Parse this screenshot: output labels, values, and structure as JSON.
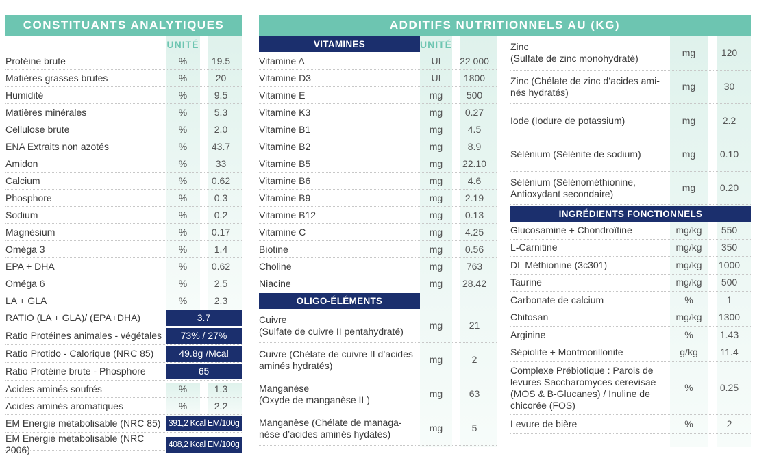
{
  "left": {
    "title": "CONSTITUANTS ANALYTIQUES",
    "unit_header": "UNITÉ",
    "rows": [
      [
        "Protéine brute",
        "%",
        "19.5"
      ],
      [
        "Matières grasses brutes",
        "%",
        "20"
      ],
      [
        "Humidité",
        "%",
        "9.5"
      ],
      [
        "Matières minérales",
        "%",
        "5.3"
      ],
      [
        "Cellulose brute",
        "%",
        "2.0"
      ],
      [
        "ENA Extraits non azotés",
        "%",
        "43.7"
      ],
      [
        "Amidon",
        "%",
        "33"
      ],
      [
        "Calcium",
        "%",
        "0.62"
      ],
      [
        "Phosphore",
        "%",
        "0.3"
      ],
      [
        "Sodium",
        "%",
        "0.2"
      ],
      [
        "Magnésium",
        "%",
        "0.17"
      ],
      [
        "Oméga 3",
        "%",
        "1.4"
      ],
      [
        "EPA + DHA",
        "%",
        "0.62"
      ],
      [
        "Oméga 6",
        "%",
        "2.5"
      ],
      [
        "LA + GLA",
        "%",
        "2.3"
      ]
    ],
    "ratios": [
      [
        "RATIO (LA + GLA)/ (EPA+DHA)",
        "3.7"
      ],
      [
        "Ratio Protéines animales - végétales",
        "73% / 27%"
      ],
      [
        "Ratio Protido - Calorique (NRC 85)",
        "49.8g /Mcal"
      ],
      [
        "Ratio Protéine brute - Phosphore",
        "65"
      ]
    ],
    "rows2": [
      [
        "Acides aminés soufrés",
        "%",
        "1.3"
      ],
      [
        "Acides aminés aromatiques",
        "%",
        "2.2"
      ]
    ],
    "energy": [
      [
        "EM Energie métabolisable  (NRC 85)",
        "391,2 Kcal EM/100g"
      ],
      [
        "EM Energie métabolisable  (NRC 2006)",
        "408,2 Kcal EM/100g"
      ]
    ]
  },
  "right": {
    "title": "ADDITIFS NUTRITIONNELS AU (KG)",
    "unit_header": "UNITÉ",
    "vitamins_title": "VITAMINES",
    "vitamins": [
      [
        "Vitamine A",
        "UI",
        "22 000"
      ],
      [
        "Vitamine D3",
        "UI",
        "1800"
      ],
      [
        "Vitamine E",
        "mg",
        "500"
      ],
      [
        "Vitamine K3",
        "mg",
        "0.27"
      ],
      [
        "Vitamine B1",
        "mg",
        "4.5"
      ],
      [
        "Vitamine B2",
        "mg",
        "8.9"
      ],
      [
        "Vitamine B5",
        "mg",
        "22.10"
      ],
      [
        "Vitamine B6",
        "mg",
        "4.6"
      ],
      [
        "Vitamine B9",
        "mg",
        "2.19"
      ],
      [
        "Vitamine B12",
        "mg",
        "0.13"
      ],
      [
        "Vitamine C",
        "mg",
        "4.25"
      ],
      [
        "Biotine",
        "mg",
        "0.56"
      ],
      [
        "Choline",
        "mg",
        "763"
      ],
      [
        "Niacine",
        "mg",
        "28.42"
      ]
    ],
    "oligo_title": "OLIGO-ÉLÉMENTS",
    "oligo": [
      [
        "Cuivre\n(Sulfate de cuivre II pentahydraté)",
        "mg",
        "21"
      ],
      [
        "Cuivre (Chélate de cuivre II d’acides\naminés hydratés)",
        "mg",
        "2"
      ],
      [
        "Manganèse\n(Oxyde de manganèse II )",
        "mg",
        "63"
      ],
      [
        "Manganèse (Chélate de managa-\nnèse d’acides aminés hydatés)",
        "mg",
        "5"
      ]
    ],
    "oligo2": [
      [
        "Zinc\n(Sulfate de zinc monohydraté)",
        "mg",
        "120"
      ],
      [
        "Zinc (Chélate de zinc d’acides ami-\nnés hydratés)",
        "mg",
        "30"
      ],
      [
        "Iode (Iodure de potassium)",
        "mg",
        "2.2"
      ],
      [
        "Sélénium (Sélénite de sodium)",
        "mg",
        "0.10"
      ],
      [
        "Sélénium (Sélénométhionine,\nAntioxydant secondaire)",
        "mg",
        "0.20"
      ]
    ],
    "ingredients_title": "INGRÉDIENTS FONCTIONNELS",
    "ingredients": [
      [
        "Glucosamine + Chondroïtine",
        "mg/kg",
        "550"
      ],
      [
        "L-Carnitine",
        "mg/kg",
        "350"
      ],
      [
        "DL Méthionine (3c301)",
        "mg/kg",
        "1000"
      ],
      [
        "Taurine",
        "mg/kg",
        "500"
      ],
      [
        "Carbonate de calcium",
        "%",
        "1"
      ],
      [
        "Chitosan",
        "mg/kg",
        "1300"
      ],
      [
        "Arginine",
        "%",
        "1.43"
      ],
      [
        "Sépiolite + Montmorillonite",
        "g/kg",
        "11.4"
      ],
      [
        "Complexe Prébiotique : Parois de\nlevures Saccharomyces cerevisae\n(MOS & B-Glucanes) / Inuline de\nchicorée (FOS)",
        "%",
        "0.25"
      ],
      [
        "Levure de bière",
        "%",
        "2"
      ]
    ]
  },
  "colors": {
    "teal": "#6dc5b1",
    "navy": "#1b2f6d"
  }
}
